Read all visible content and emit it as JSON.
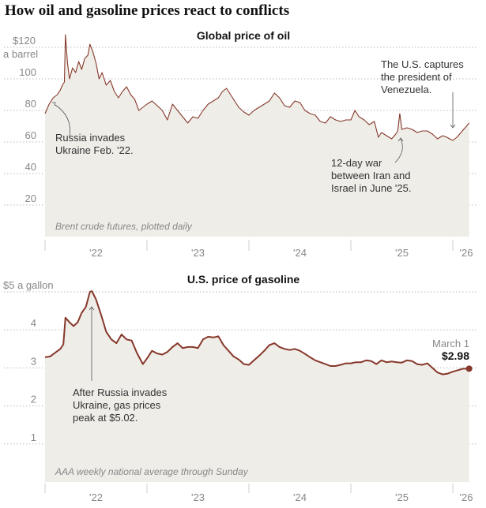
{
  "headline": "How oil and gasoline prices react to conflicts",
  "colors": {
    "line": "#86382a",
    "area": "#efede8",
    "grid": "#bbbbbb"
  },
  "chart_data": [
    {
      "type": "line",
      "title": "Global price of oil",
      "ylabel": "$120 a barrel",
      "y_unit_label": "a barrel",
      "ylim": [
        0,
        130
      ],
      "yticks": [
        {
          "v": 120,
          "label": "$120"
        },
        {
          "v": 100,
          "label": "100"
        },
        {
          "v": 80,
          "label": "80"
        },
        {
          "v": 60,
          "label": "60"
        },
        {
          "v": 40,
          "label": "40"
        },
        {
          "v": 20,
          "label": "20"
        }
      ],
      "xticks": [
        "'22",
        "'23",
        "'24",
        "'25",
        "'26"
      ],
      "source_note": "Brent crude futures, plotted daily",
      "annotations": [
        {
          "text": [
            "Russia invades",
            "Ukraine Feb. '22."
          ]
        },
        {
          "text": [
            "The U.S. captures",
            "the president of",
            "Venezuela."
          ]
        },
        {
          "text": [
            "12-day war",
            "between Iran and",
            "Israel in June '25."
          ]
        }
      ],
      "x": [
        2022.0,
        2022.04,
        2022.08,
        2022.12,
        2022.15,
        2022.17,
        2022.19,
        2022.2,
        2022.22,
        2022.24,
        2022.27,
        2022.3,
        2022.33,
        2022.36,
        2022.39,
        2022.42,
        2022.44,
        2022.47,
        2022.5,
        2022.53,
        2022.56,
        2022.6,
        2022.64,
        2022.68,
        2022.72,
        2022.76,
        2022.8,
        2022.84,
        2022.88,
        2022.92,
        2022.96,
        2023.0,
        2023.05,
        2023.1,
        2023.15,
        2023.2,
        2023.25,
        2023.3,
        2023.35,
        2023.4,
        2023.45,
        2023.5,
        2023.55,
        2023.6,
        2023.65,
        2023.7,
        2023.74,
        2023.78,
        2023.82,
        2023.86,
        2023.9,
        2023.95,
        2024.0,
        2024.05,
        2024.1,
        2024.15,
        2024.2,
        2024.25,
        2024.3,
        2024.35,
        2024.4,
        2024.45,
        2024.5,
        2024.55,
        2024.6,
        2024.65,
        2024.7,
        2024.75,
        2024.8,
        2024.85,
        2024.9,
        2024.95,
        2025.0,
        2025.04,
        2025.08,
        2025.13,
        2025.18,
        2025.23,
        2025.27,
        2025.3,
        2025.35,
        2025.4,
        2025.44,
        2025.46,
        2025.48,
        2025.5,
        2025.55,
        2025.6,
        2025.65,
        2025.7,
        2025.75,
        2025.8,
        2025.85,
        2025.9,
        2025.94,
        2025.97,
        2026.0,
        2026.04,
        2026.08,
        2026.12,
        2026.16
      ],
      "values": [
        78,
        84,
        88,
        90,
        93,
        96,
        98,
        128,
        110,
        100,
        107,
        104,
        111,
        106,
        113,
        115,
        122,
        117,
        110,
        100,
        104,
        96,
        99,
        92,
        88,
        92,
        95,
        90,
        87,
        80,
        82,
        84,
        86,
        83,
        80,
        74,
        84,
        80,
        76,
        72,
        76,
        75,
        80,
        84,
        86,
        88,
        92,
        94,
        90,
        86,
        82,
        79,
        77,
        80,
        82,
        84,
        86,
        91,
        88,
        83,
        82,
        86,
        85,
        80,
        78,
        77,
        73,
        72,
        76,
        74,
        73,
        74,
        74,
        80,
        76,
        74,
        71,
        73,
        63,
        66,
        64,
        62,
        65,
        67,
        78,
        68,
        69,
        68,
        66,
        67,
        67,
        65,
        62,
        64,
        63,
        62,
        61,
        63,
        66,
        69,
        72
      ]
    },
    {
      "type": "line",
      "title": "U.S. price of gasoline",
      "ylabel": "$5 a gallon",
      "ylim": [
        0,
        5.2
      ],
      "yticks": [
        {
          "v": 5,
          "label": "$5 a gallon"
        },
        {
          "v": 4,
          "label": "4"
        },
        {
          "v": 3,
          "label": "3"
        },
        {
          "v": 2,
          "label": "2"
        },
        {
          "v": 1,
          "label": "1"
        }
      ],
      "xticks": [
        "'22",
        "'23",
        "'24",
        "'25",
        "'26"
      ],
      "source_note": "AAA weekly national average through Sunday",
      "annotations": [
        {
          "text": [
            "After Russia invades",
            "Ukraine, gas prices",
            "peak at $5.02."
          ]
        }
      ],
      "last_point": {
        "label": "March 1",
        "value_label": "$2.98",
        "value": 2.98
      },
      "x": [
        2022.0,
        2022.05,
        2022.1,
        2022.15,
        2022.18,
        2022.2,
        2022.24,
        2022.28,
        2022.32,
        2022.36,
        2022.4,
        2022.44,
        2022.46,
        2022.5,
        2022.55,
        2022.6,
        2022.65,
        2022.7,
        2022.75,
        2022.8,
        2022.85,
        2022.9,
        2022.96,
        2023.0,
        2023.05,
        2023.1,
        2023.15,
        2023.2,
        2023.25,
        2023.3,
        2023.35,
        2023.4,
        2023.45,
        2023.5,
        2023.55,
        2023.6,
        2023.65,
        2023.7,
        2023.75,
        2023.8,
        2023.85,
        2023.9,
        2023.95,
        2024.0,
        2024.05,
        2024.1,
        2024.15,
        2024.2,
        2024.25,
        2024.3,
        2024.35,
        2024.4,
        2024.45,
        2024.5,
        2024.55,
        2024.6,
        2024.65,
        2024.7,
        2024.75,
        2024.8,
        2024.85,
        2024.9,
        2024.95,
        2025.0,
        2025.05,
        2025.1,
        2025.15,
        2025.2,
        2025.25,
        2025.3,
        2025.35,
        2025.4,
        2025.45,
        2025.5,
        2025.55,
        2025.6,
        2025.65,
        2025.7,
        2025.75,
        2025.8,
        2025.85,
        2025.9,
        2025.95,
        2026.0,
        2026.05,
        2026.1,
        2026.16
      ],
      "values": [
        3.28,
        3.3,
        3.4,
        3.5,
        3.62,
        4.32,
        4.2,
        4.1,
        4.2,
        4.45,
        4.6,
        5.0,
        5.02,
        4.8,
        4.4,
        3.95,
        3.75,
        3.65,
        3.88,
        3.75,
        3.72,
        3.4,
        3.1,
        3.25,
        3.45,
        3.38,
        3.35,
        3.42,
        3.55,
        3.65,
        3.52,
        3.55,
        3.55,
        3.52,
        3.75,
        3.82,
        3.8,
        3.83,
        3.6,
        3.45,
        3.3,
        3.22,
        3.1,
        3.08,
        3.2,
        3.32,
        3.45,
        3.6,
        3.65,
        3.55,
        3.5,
        3.47,
        3.5,
        3.45,
        3.37,
        3.28,
        3.2,
        3.15,
        3.1,
        3.05,
        3.05,
        3.08,
        3.12,
        3.12,
        3.15,
        3.15,
        3.2,
        3.18,
        3.1,
        3.2,
        3.15,
        3.17,
        3.15,
        3.14,
        3.2,
        3.18,
        3.1,
        3.08,
        3.12,
        3.0,
        2.88,
        2.83,
        2.85,
        2.9,
        2.94,
        2.98,
        2.98
      ]
    }
  ]
}
